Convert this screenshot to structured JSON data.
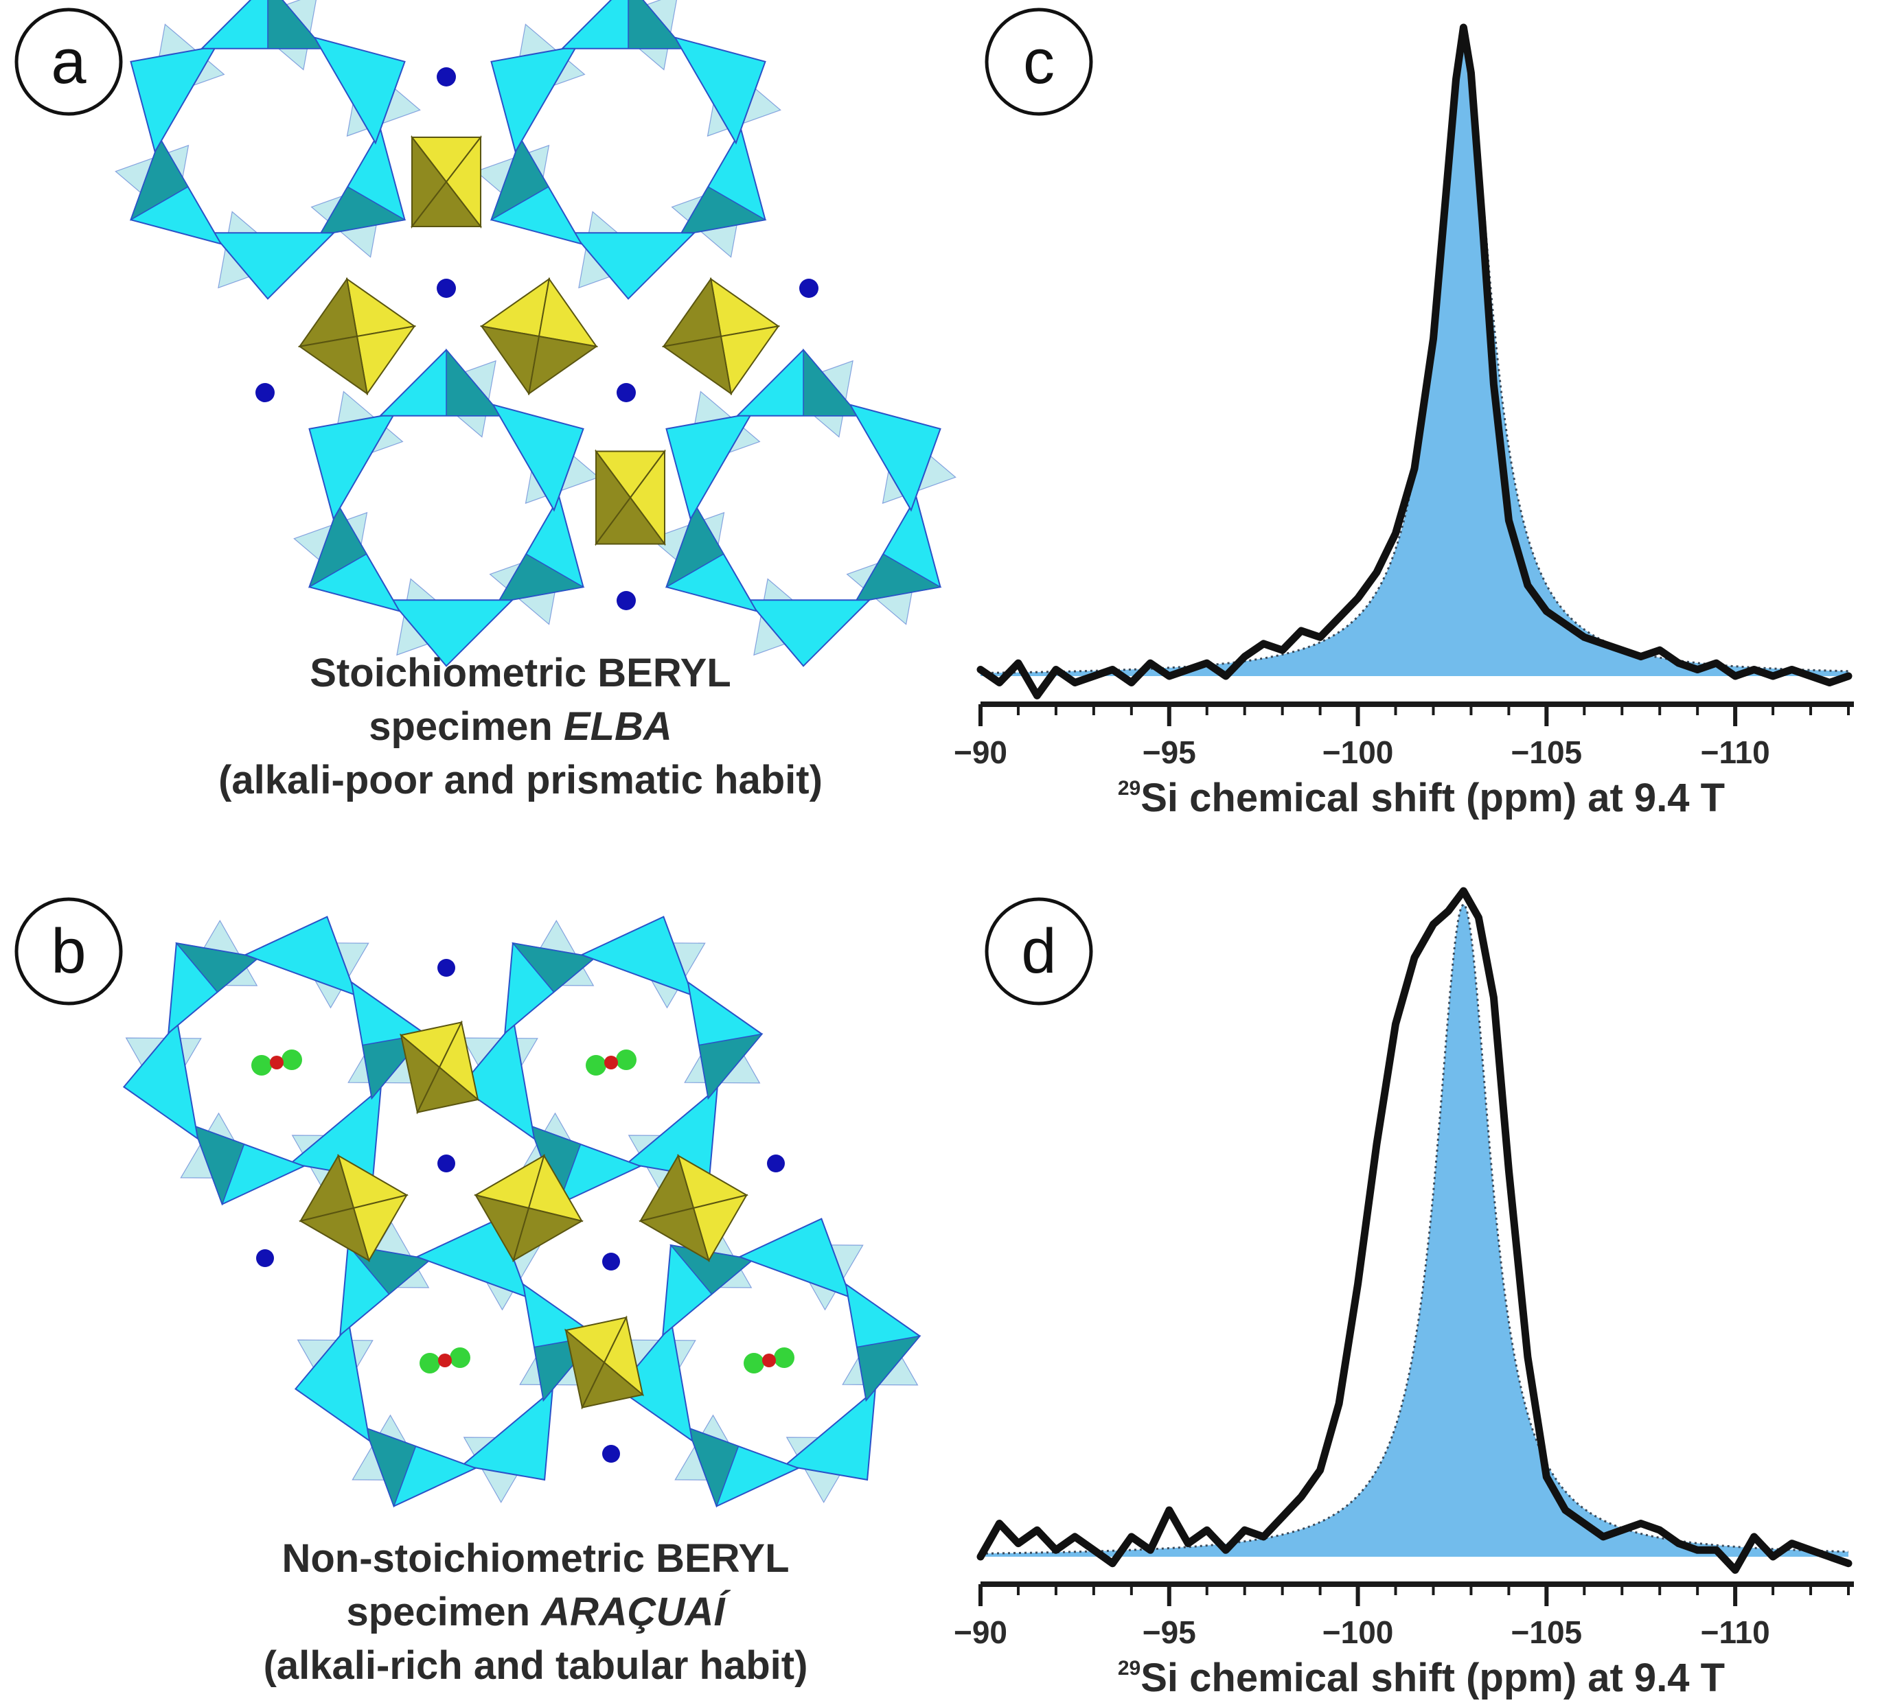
{
  "panels": {
    "a": {
      "label": "a",
      "caption": {
        "line1": "Stoichiometric BERYL",
        "line2_prefix": "specimen ",
        "line2_specimen": "ELBA",
        "line3": "(alkali-poor and prismatic habit)"
      }
    },
    "b": {
      "label": "b",
      "caption": {
        "line1": "Non-stoichiometric BERYL",
        "line2_prefix": "specimen ",
        "line2_specimen": "ARAÇUAÍ",
        "line3": "(alkali-rich and tabular habit)"
      }
    },
    "c": {
      "label": "c"
    },
    "d": {
      "label": "d"
    }
  },
  "colors": {
    "tetra_light": "#25e6f4",
    "tetra_pale": "#8fd8e0",
    "tetra_dark": "#1a9aa2",
    "tetra_edge": "#2a52c8",
    "octa_light": "#ece437",
    "octa_dark": "#8f8a1f",
    "octa_edge": "#5a5510",
    "channel_atom": "#1010b4",
    "molecule_end": "#35d43a",
    "molecule_center": "#d01c1c",
    "fill_component": "#72bcec",
    "spectrum_line": "#111111",
    "fit_dotted": "#3a4a5a"
  },
  "chart_data": [
    {
      "type": "line",
      "panel": "c",
      "title": "",
      "xlabel_sup": "29",
      "xlabel": "Si chemical shift (ppm) at 9.4 T",
      "ylabel": "",
      "xlim": [
        -90,
        -113
      ],
      "x_direction": "reversed (more negative to the right)",
      "xticks": [
        -90,
        -95,
        -100,
        -105,
        -110
      ],
      "xtick_labels": [
        "−90",
        "−95",
        "−100",
        "−105",
        "−110"
      ],
      "ylim": [
        0,
        1.0
      ],
      "grid": false,
      "series": [
        {
          "name": "experimental spectrum",
          "style": "solid thick black",
          "x": [
            -90,
            -90.5,
            -91,
            -91.5,
            -92,
            -92.5,
            -93,
            -93.5,
            -94,
            -94.5,
            -95,
            -95.5,
            -96,
            -96.5,
            -97,
            -97.5,
            -98,
            -98.5,
            -99,
            -99.5,
            -100,
            -100.5,
            -101,
            -101.5,
            -102,
            -102.3,
            -102.6,
            -102.8,
            -103,
            -103.3,
            -103.6,
            -104,
            -104.5,
            -105,
            -105.5,
            -106,
            -106.5,
            -107,
            -107.5,
            -108,
            -108.5,
            -109,
            -109.5,
            -110,
            -110.5,
            -111,
            -111.5,
            -112,
            -112.5,
            -113
          ],
          "y": [
            0.01,
            -0.01,
            0.02,
            -0.03,
            0.01,
            -0.01,
            0.0,
            0.01,
            -0.01,
            0.02,
            0.0,
            0.01,
            0.02,
            0.0,
            0.03,
            0.05,
            0.04,
            0.07,
            0.06,
            0.09,
            0.12,
            0.16,
            0.22,
            0.32,
            0.52,
            0.72,
            0.92,
            1.0,
            0.93,
            0.7,
            0.45,
            0.24,
            0.14,
            0.1,
            0.08,
            0.06,
            0.05,
            0.04,
            0.03,
            0.04,
            0.02,
            0.01,
            0.02,
            0.0,
            0.01,
            0.0,
            0.01,
            0.0,
            -0.01,
            0.0
          ]
        },
        {
          "name": "fitted component",
          "style": "dotted line with blue fill",
          "center": -102.8,
          "half_width": 0.9,
          "amplitude": 0.98,
          "baseline": 0.0
        }
      ]
    },
    {
      "type": "line",
      "panel": "d",
      "title": "",
      "xlabel_sup": "29",
      "xlabel": "Si chemical shift (ppm) at 9.4 T",
      "ylabel": "",
      "xlim": [
        -90,
        -113
      ],
      "x_direction": "reversed (more negative to the right)",
      "xticks": [
        -90,
        -95,
        -100,
        -105,
        -110
      ],
      "xtick_labels": [
        "−90",
        "−95",
        "−100",
        "−105",
        "−110"
      ],
      "ylim": [
        0,
        1.0
      ],
      "grid": false,
      "series": [
        {
          "name": "experimental spectrum",
          "style": "solid thick black",
          "x": [
            -90,
            -90.5,
            -91,
            -91.5,
            -92,
            -92.5,
            -93,
            -93.5,
            -94,
            -94.5,
            -95,
            -95.5,
            -96,
            -96.5,
            -97,
            -97.5,
            -98,
            -98.5,
            -99,
            -99.5,
            -100,
            -100.5,
            -101,
            -101.5,
            -102,
            -102.4,
            -102.8,
            -103.2,
            -103.6,
            -104,
            -104.5,
            -105,
            -105.5,
            -106,
            -106.5,
            -107,
            -107.5,
            -108,
            -108.5,
            -109,
            -109.5,
            -110,
            -110.5,
            -111,
            -111.5,
            -112,
            -112.5,
            -113
          ],
          "y": [
            0.0,
            0.05,
            0.02,
            0.04,
            0.01,
            0.03,
            0.01,
            -0.01,
            0.03,
            0.01,
            0.07,
            0.02,
            0.04,
            0.01,
            0.04,
            0.03,
            0.06,
            0.09,
            0.13,
            0.23,
            0.41,
            0.62,
            0.8,
            0.9,
            0.95,
            0.97,
            1.0,
            0.96,
            0.84,
            0.58,
            0.3,
            0.12,
            0.07,
            0.05,
            0.03,
            0.04,
            0.05,
            0.04,
            0.02,
            0.01,
            0.01,
            -0.02,
            0.03,
            0.0,
            0.02,
            0.01,
            0.0,
            -0.01
          ]
        },
        {
          "name": "fitted component",
          "style": "dotted line with blue fill",
          "center": -102.8,
          "half_width": 0.9,
          "amplitude": 0.98,
          "baseline": 0.0
        }
      ]
    }
  ]
}
